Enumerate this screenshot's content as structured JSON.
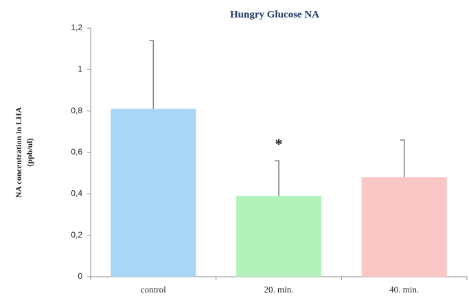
{
  "chart_data": {
    "type": "bar",
    "title": "Hungry  Glucose NA",
    "ylabel": [
      "NA concentration in LHA",
      "(ppb/ul)"
    ],
    "categories": [
      "control",
      "20. min.",
      "40. min."
    ],
    "values": [
      0.81,
      0.39,
      0.48
    ],
    "errors": [
      0.33,
      0.17,
      0.18
    ],
    "colors": [
      "#a9d5f7",
      "#b3f2bb",
      "#fbc6c6"
    ],
    "error_color": "#7f7f7f",
    "annotations": [
      "*"
    ],
    "ylim": [
      0,
      1.2
    ],
    "yticks": [
      0,
      {
        "value": 0.2,
        "label": "0,2"
      },
      {
        "value": 0.4,
        "label": "0,4"
      },
      {
        "value": 0.6,
        "label": "0,6"
      },
      {
        "value": 0.8,
        "label": "0,8"
      },
      1,
      {
        "value": 1.2,
        "label": "1,2"
      }
    ]
  }
}
